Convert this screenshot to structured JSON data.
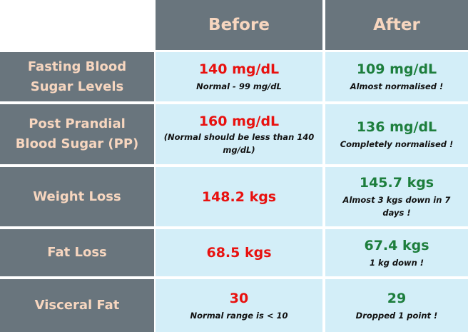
{
  "header": {
    "before_label": "Before",
    "after_label": "After"
  },
  "rows": [
    {
      "label": "Fasting Blood Sugar Levels",
      "before_value": "140 mg/dL",
      "before_note": "Normal - 99 mg/dL",
      "after_value": "109 mg/dL",
      "after_note": "Almost normalised !"
    },
    {
      "label": "Post Prandial Blood Sugar (PP)",
      "before_value": "160 mg/dL",
      "before_note": "(Normal should be less than 140 mg/dL)",
      "after_value": "136 mg/dL",
      "after_note": "Completely normalised !"
    },
    {
      "label": "Weight Loss",
      "before_value": "148.2 kgs",
      "before_note": "",
      "after_value": "145.7 kgs",
      "after_note": "Almost 3 kgs down in 7 days !"
    },
    {
      "label": "Fat Loss",
      "before_value": "68.5 kgs",
      "before_note": "",
      "after_value": "67.4 kgs",
      "after_note": "1 kg down !"
    },
    {
      "label": "Visceral Fat",
      "before_value": "30",
      "before_note": "Normal range is < 10",
      "after_value": "29",
      "after_note": "Dropped 1 point !"
    }
  ],
  "colors": {
    "header_bg": "#69757d",
    "header_text": "#f7d6bf",
    "cell_bg": "#d3eef8",
    "before_value": "#e8110f",
    "after_value": "#1d7e3d"
  }
}
